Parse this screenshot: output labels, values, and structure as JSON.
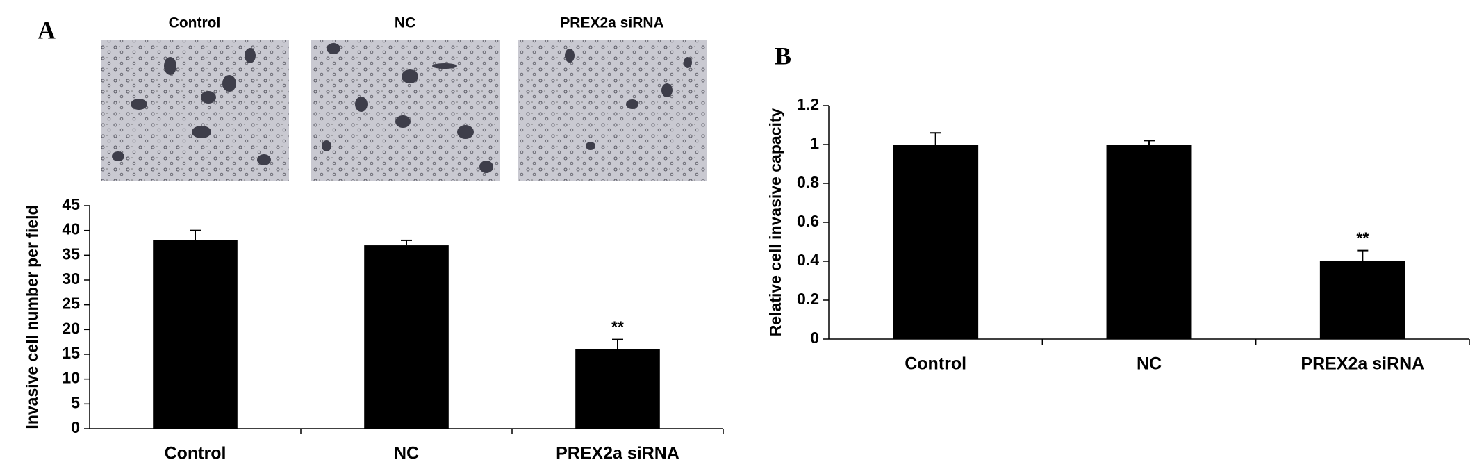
{
  "chart_data": [
    {
      "type": "bar",
      "panel_label": "A",
      "image_labels": [
        "Control",
        "NC",
        "PREX2a siRNA"
      ],
      "ylabel": "Invasive cell number per field",
      "categories": [
        "Control",
        "NC",
        "PREX2a siRNA"
      ],
      "values": [
        38,
        37,
        16
      ],
      "errors": [
        2,
        1,
        2
      ],
      "annotations": [
        null,
        null,
        "**"
      ],
      "color": "#000000",
      "ylim": [
        0,
        45
      ],
      "yticks": [
        0,
        5,
        10,
        15,
        20,
        25,
        30,
        35,
        40,
        45
      ],
      "grid": false
    },
    {
      "type": "bar",
      "panel_label": "B",
      "ylabel": "Relative cell invasive capacity",
      "categories": [
        "Control",
        "NC",
        "PREX2a siRNA"
      ],
      "values": [
        1,
        1,
        0.4
      ],
      "errors": [
        0.06,
        0.02,
        0.055
      ],
      "annotations": [
        null,
        null,
        "**"
      ],
      "color": "#000000",
      "ylim": [
        0,
        1.2
      ],
      "yticks": [
        0,
        0.2,
        0.4,
        0.6,
        0.8,
        1,
        1.2
      ],
      "grid": false
    }
  ]
}
